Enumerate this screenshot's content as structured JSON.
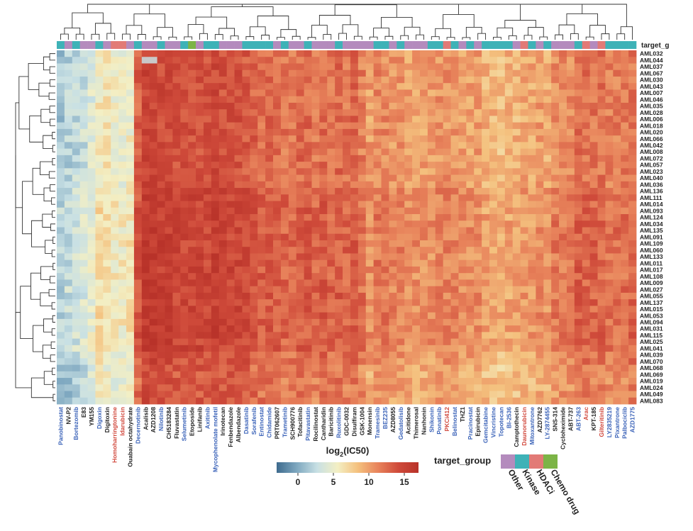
{
  "chart_data": {
    "type": "heatmap",
    "title": "",
    "colorbar": {
      "title_main": "log",
      "title_sub": "2",
      "title_rest": "(IC50)",
      "ticks": [
        0,
        5,
        10,
        15
      ],
      "range": [
        -3,
        17
      ],
      "stops": [
        "#3e6b8e",
        "#7fa8c0",
        "#c8e0e4",
        "#f3efc4",
        "#f4c17e",
        "#e8835b",
        "#cf4a3a",
        "#b83229"
      ]
    },
    "annotation_row_label": "target_g",
    "legend": {
      "title": "target_group",
      "entries": [
        {
          "name": "Other",
          "color": "#b48bbd"
        },
        {
          "name": "Kinase",
          "color": "#3eb2b7"
        },
        {
          "name": "HDACi",
          "color": "#e27a76"
        },
        {
          "name": "Chemo drug",
          "color": "#7cb446"
        }
      ]
    },
    "group_colors": {
      "Other": "#b48bbd",
      "Kinase": "#3eb2b7",
      "HDACi": "#e27a76",
      "Chemo drug": "#7cb446"
    },
    "label_colors": {
      "Other": "#222222",
      "Kinase": "#3a62b8",
      "HDACi": "#d1473b",
      "Chemo drug": "#222222"
    },
    "rows": [
      "AML032",
      "AML044",
      "AML037",
      "AML067",
      "AML030",
      "AML043",
      "AML007",
      "AML046",
      "AML035",
      "AML028",
      "AML006",
      "AML018",
      "AML020",
      "AML066",
      "AML042",
      "AML008",
      "AML072",
      "AML057",
      "AML023",
      "AML040",
      "AML036",
      "AML136",
      "AML111",
      "AML014",
      "AML093",
      "AML124",
      "AML034",
      "AML135",
      "AML091",
      "AML109",
      "AML060",
      "AML133",
      "AML011",
      "AML017",
      "AML108",
      "AML009",
      "AML027",
      "AML055",
      "AML137",
      "AML015",
      "AML053",
      "AML094",
      "AML031",
      "AML115",
      "AML025",
      "AML041",
      "AML039",
      "AML070",
      "AML068",
      "AML069",
      "AML019",
      "AML024",
      "AML049",
      "AML083"
    ],
    "columns": [
      {
        "name": "Panobinostat",
        "group": "Kinase",
        "level": 1.5
      },
      {
        "name": "NV-P2",
        "group": "Other",
        "level": 2
      },
      {
        "name": "Bortezomib",
        "group": "Kinase",
        "level": 2.5
      },
      {
        "name": "E83",
        "group": "Other",
        "level": 3
      },
      {
        "name": "YM155",
        "group": "Other",
        "level": 4
      },
      {
        "name": "Digoxin",
        "group": "Kinase",
        "level": 6
      },
      {
        "name": "Digitoxin",
        "group": "Other",
        "level": 6
      },
      {
        "name": "Homoharringtonine",
        "group": "HDACi",
        "level": 5
      },
      {
        "name": "Idarubicin",
        "group": "HDACi",
        "level": 5
      },
      {
        "name": "Ouabain octahydrate",
        "group": "Other",
        "level": 5.5
      },
      {
        "name": "Decernotinib",
        "group": "Kinase",
        "level": 13
      },
      {
        "name": "Acalisib",
        "group": "Other",
        "level": 15
      },
      {
        "name": "AZD1208",
        "group": "Other",
        "level": 15
      },
      {
        "name": "Nilotinib",
        "group": "Kinase",
        "level": 14.5
      },
      {
        "name": "CH5183284",
        "group": "Other",
        "level": 14.5
      },
      {
        "name": "Fluvastatin",
        "group": "Other",
        "level": 14
      },
      {
        "name": "Selumetinib",
        "group": "Kinase",
        "level": 14
      },
      {
        "name": "Etoposide",
        "group": "Chemo drug",
        "level": 14
      },
      {
        "name": "Linifanib",
        "group": "Other",
        "level": 14
      },
      {
        "name": "Axitinib",
        "group": "Kinase",
        "level": 14
      },
      {
        "name": "Mycophenolate mofetil",
        "group": "Kinase",
        "level": 14.5
      },
      {
        "name": "Irinotecan",
        "group": "Other",
        "level": 14
      },
      {
        "name": "Fenbendazole",
        "group": "Other",
        "level": 14
      },
      {
        "name": "Albendazole",
        "group": "Other",
        "level": 14
      },
      {
        "name": "Dasatinib",
        "group": "Kinase",
        "level": 13.5
      },
      {
        "name": "Sorafenib",
        "group": "Kinase",
        "level": 13
      },
      {
        "name": "Entinostat",
        "group": "Kinase",
        "level": 12.5
      },
      {
        "name": "Chidamide",
        "group": "Kinase",
        "level": 12.5
      },
      {
        "name": "PRT062607",
        "group": "Other",
        "level": 12.5
      },
      {
        "name": "Trametinib",
        "group": "Kinase",
        "level": 12
      },
      {
        "name": "SCH900776",
        "group": "Other",
        "level": 12
      },
      {
        "name": "Tofacitinib",
        "group": "Other",
        "level": 12.5
      },
      {
        "name": "Pitavastatin",
        "group": "Kinase",
        "level": 12.5
      },
      {
        "name": "Rocilinostat",
        "group": "Other",
        "level": 12
      },
      {
        "name": "Cantharidin",
        "group": "Other",
        "level": 12.5
      },
      {
        "name": "Baricitinib",
        "group": "Other",
        "level": 12
      },
      {
        "name": "Ruxolitinib",
        "group": "Kinase",
        "level": 12.5
      },
      {
        "name": "GDC-0032",
        "group": "Other",
        "level": 12
      },
      {
        "name": "Disulfiram",
        "group": "Other",
        "level": 12.5
      },
      {
        "name": "GSK-1004",
        "group": "Other",
        "level": 11.5
      },
      {
        "name": "Monensin",
        "group": "Other",
        "level": 10
      },
      {
        "name": "Tramesinib",
        "group": "Kinase",
        "level": 11
      },
      {
        "name": "BEZ235",
        "group": "Kinase",
        "level": 11
      },
      {
        "name": "AZD8055",
        "group": "Other",
        "level": 10.5
      },
      {
        "name": "Gedatolisib",
        "group": "Kinase",
        "level": 10.5
      },
      {
        "name": "Acitidone",
        "group": "Other",
        "level": 10
      },
      {
        "name": "Thimerosal",
        "group": "Other",
        "level": 10
      },
      {
        "name": "Nanhonin",
        "group": "Other",
        "level": 10
      },
      {
        "name": "Shikonin",
        "group": "Kinase",
        "level": 10
      },
      {
        "name": "Ponatinib",
        "group": "Kinase",
        "level": 10.5
      },
      {
        "name": "PKCi412",
        "group": "HDACi",
        "level": 10.5
      },
      {
        "name": "Belinostat",
        "group": "Kinase",
        "level": 10.5
      },
      {
        "name": "THZ1",
        "group": "Other",
        "level": 10
      },
      {
        "name": "Pracinostat",
        "group": "Kinase",
        "level": 10
      },
      {
        "name": "Epirubicin",
        "group": "Other",
        "level": 10
      },
      {
        "name": "Gemcitabine",
        "group": "Kinase",
        "level": 9
      },
      {
        "name": "Vincristine",
        "group": "Kinase",
        "level": 9
      },
      {
        "name": "Topotecan",
        "group": "Kinase",
        "level": 8.5
      },
      {
        "name": "BI-2536",
        "group": "Kinase",
        "level": 9
      },
      {
        "name": "Camptothecin",
        "group": "Other",
        "level": 9
      },
      {
        "name": "Daunorubicin",
        "group": "HDACi",
        "level": 9.5
      },
      {
        "name": "Mitoxantrone",
        "group": "Kinase",
        "level": 9.5
      },
      {
        "name": "AZD7762",
        "group": "Other",
        "level": 10
      },
      {
        "name": "LY-2874455",
        "group": "Kinase",
        "level": 9.5
      },
      {
        "name": "SNS-314",
        "group": "Other",
        "level": 11
      },
      {
        "name": "Cycloheximide",
        "group": "Other",
        "level": 11
      },
      {
        "name": "ABT-737",
        "group": "Other",
        "level": 11
      },
      {
        "name": "ABT-263",
        "group": "Kinase",
        "level": 12.5
      },
      {
        "name": "Arac",
        "group": "HDACi",
        "level": 12
      },
      {
        "name": "KPT-185",
        "group": "Other",
        "level": 12
      },
      {
        "name": "Gilteritinib",
        "group": "HDACi",
        "level": 12
      },
      {
        "name": "LY2835219",
        "group": "Kinase",
        "level": 11.5
      },
      {
        "name": "Pixantrone",
        "group": "Kinase",
        "level": 11.5
      },
      {
        "name": "Palbociclib",
        "group": "Kinase",
        "level": 11.5
      },
      {
        "name": "AZD1775",
        "group": "Kinase",
        "level": 12
      }
    ]
  }
}
